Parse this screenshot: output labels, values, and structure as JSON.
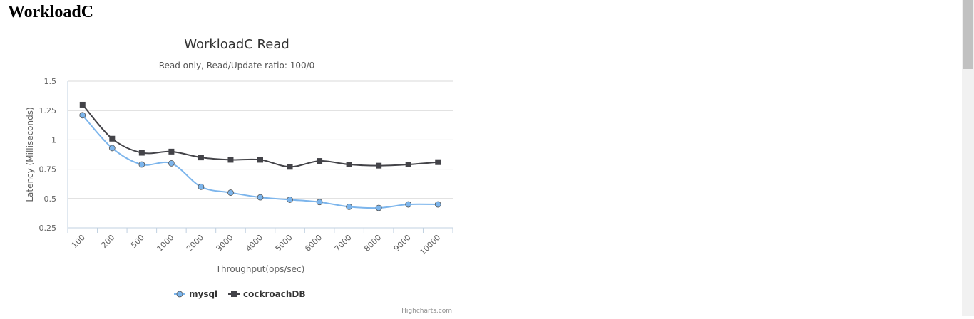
{
  "page": {
    "heading": "WorkloadC"
  },
  "colors": {
    "mysql": "#7cb5ec",
    "cockroachDB": "#434348",
    "grid": "#d8d8d8",
    "axis": "#c0d0e0",
    "text": "#333333",
    "label": "#606060"
  },
  "chart_data": {
    "type": "line",
    "title": "WorkloadC Read",
    "subtitle": "Read only, Read/Update ratio: 100/0",
    "xlabel": "Throughput(ops/sec)",
    "ylabel": "Latency (Milliseconds)",
    "categories": [
      "100",
      "200",
      "500",
      "1000",
      "2000",
      "3000",
      "4000",
      "5000",
      "6000",
      "7000",
      "8000",
      "9000",
      "10000"
    ],
    "yticks": [
      "0.25",
      "0.5",
      "0.75",
      "1",
      "1.25",
      "1.5"
    ],
    "ylim": [
      0.25,
      1.5
    ],
    "grid": true,
    "legend_position": "bottom-center",
    "series": [
      {
        "name": "mysql",
        "marker": "circle",
        "values": [
          1.21,
          0.93,
          0.79,
          0.8,
          0.6,
          0.55,
          0.51,
          0.49,
          0.47,
          0.43,
          0.42,
          0.45,
          0.45
        ]
      },
      {
        "name": "cockroachDB",
        "marker": "square",
        "values": [
          1.3,
          1.01,
          0.89,
          0.9,
          0.85,
          0.83,
          0.83,
          0.77,
          0.82,
          0.79,
          0.78,
          0.79,
          0.81
        ]
      }
    ],
    "credits": "Highcharts.com"
  }
}
